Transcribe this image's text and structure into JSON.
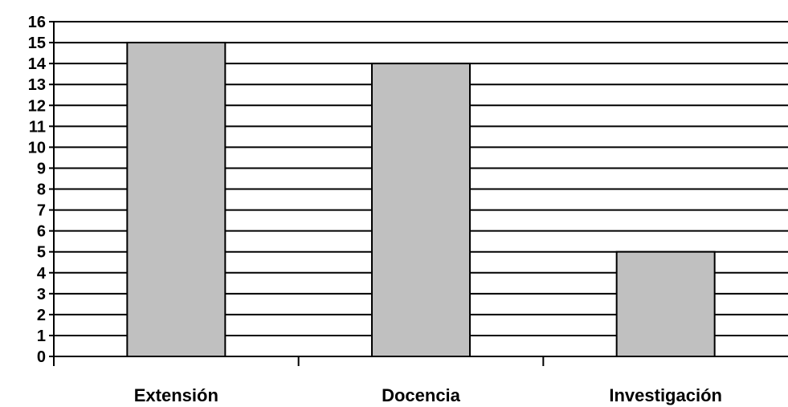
{
  "chart_data": {
    "type": "bar",
    "categories": [
      "Extensión",
      "Docencia",
      "Investigación"
    ],
    "values": [
      15,
      14,
      5
    ],
    "ylim": [
      0,
      16
    ],
    "yticks": [
      0,
      1,
      2,
      3,
      4,
      5,
      6,
      7,
      8,
      9,
      10,
      11,
      12,
      13,
      14,
      15,
      16
    ],
    "grid": true,
    "legend": "none"
  },
  "colors": {
    "bar_fill": "#c0c0c0",
    "bar_stroke": "#000000",
    "grid": "#000000"
  }
}
